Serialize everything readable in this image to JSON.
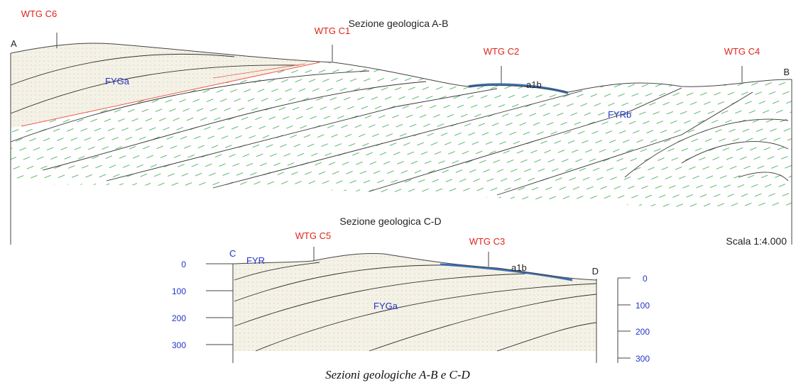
{
  "section_ab": {
    "title": "Sezione geologica A-B",
    "end_left": "A",
    "end_right": "B",
    "turbines": [
      "WTG C6",
      "WTG C1",
      "WTG C2",
      "WTG C4"
    ],
    "units": [
      "FYGa",
      "FYRb",
      "a1b"
    ],
    "scale": "Scala 1:4.000"
  },
  "section_cd": {
    "title": "Sezione geologica C-D",
    "end_left": "C",
    "end_right": "D",
    "turbines": [
      "WTG C5",
      "WTG C3"
    ],
    "units": [
      "FYR",
      "FYGa",
      "a1b"
    ],
    "depth_ticks": [
      0,
      100,
      200,
      300
    ]
  },
  "caption": "Sezioni geologiche A-B e C-D"
}
